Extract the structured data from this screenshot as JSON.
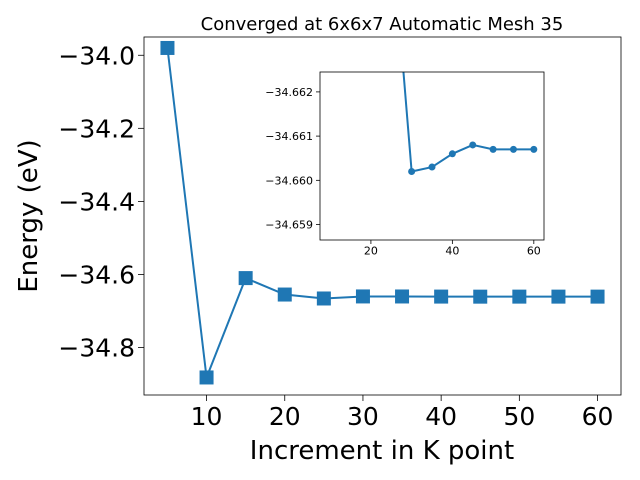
{
  "chart_data": [
    {
      "type": "line",
      "title": "Converged at 6x6x7 Automatic Mesh 35",
      "xlabel": "Increment in K point",
      "ylabel": "Energy (eV)",
      "xlim": [
        2,
        63
      ],
      "ylim": [
        -34.93,
        -33.95
      ],
      "xticks": [
        10,
        20,
        30,
        40,
        50,
        60
      ],
      "xtick_labels": [
        "10",
        "20",
        "30",
        "40",
        "50",
        "60"
      ],
      "yticks": [
        -34.0,
        -34.2,
        -34.4,
        -34.6,
        -34.8
      ],
      "ytick_labels": [
        "−34.0",
        "−34.2",
        "−34.4",
        "−34.6",
        "−34.8"
      ],
      "marker": "square",
      "color": "#1f77b4",
      "grid": false,
      "series": [
        {
          "x": [
            5,
            10,
            15,
            20,
            25,
            30,
            35,
            40,
            45,
            50,
            55,
            60
          ],
          "y": [
            -33.98,
            -34.882,
            -34.61,
            -34.655,
            -34.6658,
            -34.6602,
            -34.6603,
            -34.6606,
            -34.6608,
            -34.6607,
            -34.6607,
            -34.6607
          ]
        }
      ]
    },
    {
      "type": "line",
      "title": "",
      "xlabel": "",
      "ylabel": "",
      "xlim": [
        7.5,
        62.5
      ],
      "ylim": [
        -34.66245,
        -34.65865
      ],
      "xticks": [
        20,
        40,
        60
      ],
      "xtick_labels": [
        "20",
        "40",
        "60"
      ],
      "yticks": [
        -34.662,
        -34.661,
        -34.66,
        -34.659
      ],
      "ytick_labels": [
        "−34.662",
        "−34.661",
        "−34.660",
        "−34.659"
      ],
      "y_inverted": true,
      "marker": "circle",
      "color": "#1f77b4",
      "grid": false,
      "series": [
        {
          "x": [
            25,
            30,
            35,
            40,
            45,
            50,
            55,
            60
          ],
          "y": [
            -34.6658,
            -34.6602,
            -34.6603,
            -34.6606,
            -34.6608,
            -34.6607,
            -34.6607,
            -34.6607
          ]
        }
      ]
    }
  ]
}
